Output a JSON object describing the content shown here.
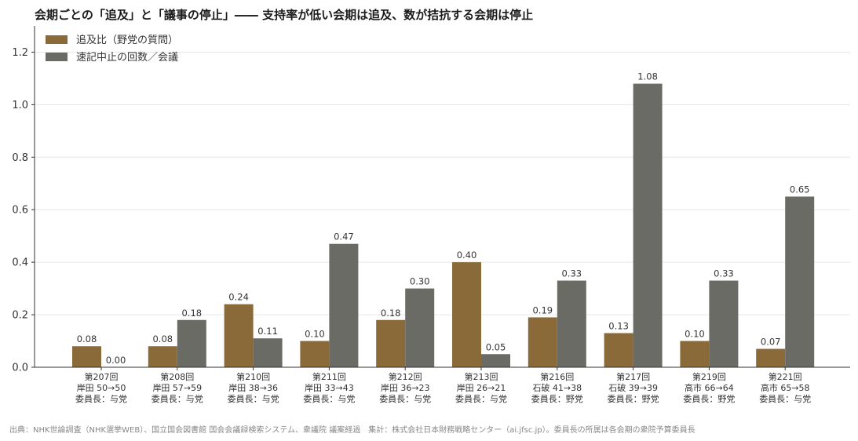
{
  "title": "会期ごとの「追及」と「議事の停止」―― 支持率が低い会期は追及、数が拮抗する会期は停止",
  "footer": "出典：NHK世論調査（NHK選挙WEB）、国立国会図書館 国会会議録検索システム、衆議院 議案経過　集計：株式会社日本財務戦略センター（ai.jfsc.jp）。委員長の所属は各会期の衆院予算委員長",
  "chart_data": {
    "type": "bar",
    "ylim": [
      0,
      1.3
    ],
    "yticks": [
      "0.0",
      "0.2",
      "0.4",
      "0.6",
      "0.8",
      "1.0",
      "1.2"
    ],
    "ytick_values": [
      0,
      0.2,
      0.4,
      0.6,
      0.8,
      1.0,
      1.2
    ],
    "grid": true,
    "legend_position": "top-left",
    "categories": [
      [
        "第207回",
        "岸田 50→50",
        "委員長：与党"
      ],
      [
        "第208回",
        "岸田 57→59",
        "委員長：与党"
      ],
      [
        "第210回",
        "岸田 38→36",
        "委員長：与党"
      ],
      [
        "第211回",
        "岸田 33→43",
        "委員長：与党"
      ],
      [
        "第212回",
        "岸田 36→23",
        "委員長：与党"
      ],
      [
        "第213回",
        "岸田 26→21",
        "委員長：与党"
      ],
      [
        "第216回",
        "石破 41→38",
        "委員長：野党"
      ],
      [
        "第217回",
        "石破 39→39",
        "委員長：野党"
      ],
      [
        "第219回",
        "高市 66→64",
        "委員長：野党"
      ],
      [
        "第221回",
        "高市 65→58",
        "委員長：与党"
      ]
    ],
    "series": [
      {
        "name": "追及比（野党の質問）",
        "color": "#8b6a3a",
        "values": [
          0.08,
          0.08,
          0.24,
          0.1,
          0.18,
          0.4,
          0.19,
          0.13,
          0.1,
          0.07
        ],
        "labels": [
          "0.08",
          "0.08",
          "0.24",
          "0.10",
          "0.18",
          "0.40",
          "0.19",
          "0.13",
          "0.10",
          "0.07"
        ]
      },
      {
        "name": "速記中止の回数／会議",
        "color": "#6b6b66",
        "values": [
          0.0,
          0.18,
          0.11,
          0.47,
          0.3,
          0.05,
          0.33,
          1.08,
          0.33,
          0.65
        ],
        "labels": [
          "0.00",
          "0.18",
          "0.11",
          "0.47",
          "0.30",
          "0.05",
          "0.33",
          "1.08",
          "0.33",
          "0.65"
        ]
      }
    ]
  }
}
